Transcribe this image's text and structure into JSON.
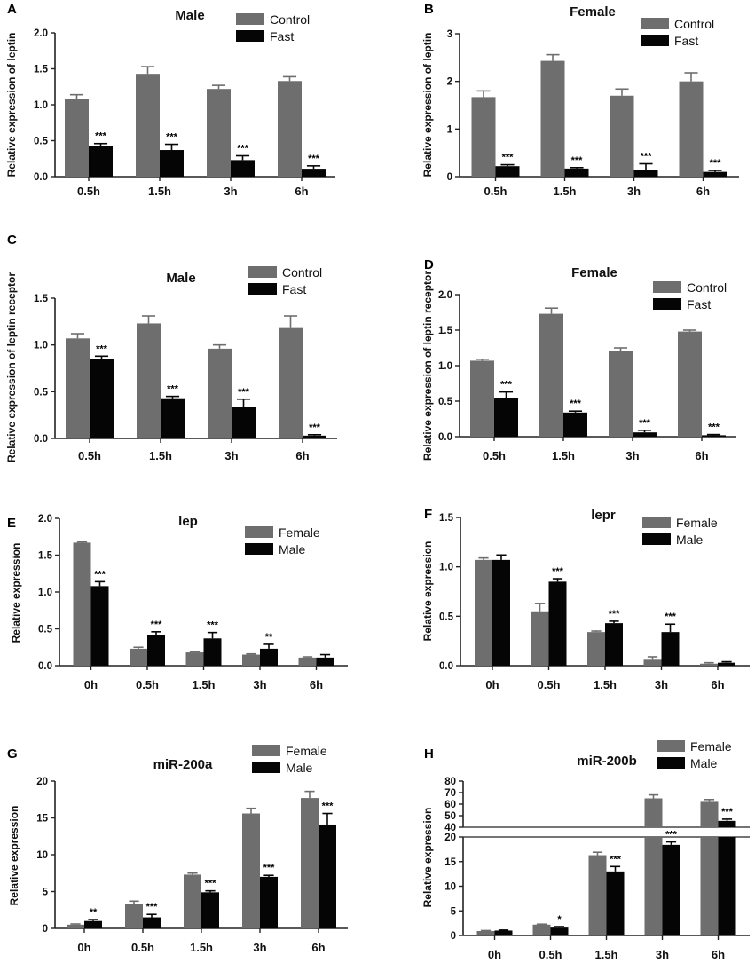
{
  "colors": {
    "primary": "#6e6e6e",
    "secondary": "#050505",
    "axis": "#222222"
  },
  "chart_data": [
    {
      "panel": "A",
      "type": "bar",
      "title": "Male",
      "ylabel": "Relative expression of leptin",
      "xlabel": "",
      "categories": [
        "0.5h",
        "1.5h",
        "3h",
        "6h"
      ],
      "ylim": [
        0,
        2.0
      ],
      "yticks": [
        {
          "v": 0,
          "t": "0.0"
        },
        {
          "v": 0.5,
          "t": "0.5"
        },
        {
          "v": 1.0,
          "t": "1.0"
        },
        {
          "v": 1.5,
          "t": "1.5"
        },
        {
          "v": 2.0,
          "t": "2.0"
        }
      ],
      "legend": "top-right",
      "series": [
        {
          "name": "Control",
          "values": [
            1.08,
            1.43,
            1.22,
            1.33
          ],
          "errors": [
            0.06,
            0.1,
            0.05,
            0.06
          ],
          "sig": [
            "",
            "",
            "",
            ""
          ]
        },
        {
          "name": "Fast",
          "values": [
            0.42,
            0.37,
            0.23,
            0.11
          ],
          "errors": [
            0.04,
            0.08,
            0.06,
            0.04
          ],
          "sig": [
            "***",
            "***",
            "***",
            "***"
          ]
        }
      ]
    },
    {
      "panel": "B",
      "type": "bar",
      "title": "Female",
      "ylabel": "Relative expression of leptin",
      "xlabel": "",
      "categories": [
        "0.5h",
        "1.5h",
        "3h",
        "6h"
      ],
      "ylim": [
        0,
        3
      ],
      "yticks": [
        {
          "v": 0,
          "t": "0"
        },
        {
          "v": 1,
          "t": "1"
        },
        {
          "v": 2,
          "t": "2"
        },
        {
          "v": 3,
          "t": "3"
        }
      ],
      "legend": "top-right",
      "series": [
        {
          "name": "Control",
          "values": [
            1.67,
            2.43,
            1.7,
            2.0
          ],
          "errors": [
            0.13,
            0.13,
            0.14,
            0.18
          ],
          "sig": [
            "",
            "",
            "",
            ""
          ]
        },
        {
          "name": "Fast",
          "values": [
            0.22,
            0.17,
            0.14,
            0.1
          ],
          "errors": [
            0.03,
            0.02,
            0.13,
            0.03
          ],
          "sig": [
            "***",
            "***",
            "***",
            "***"
          ]
        }
      ]
    },
    {
      "panel": "C",
      "type": "bar",
      "title": "Male",
      "ylabel": "Relative expression of leptin receptor",
      "xlabel": "",
      "categories": [
        "0.5h",
        "1.5h",
        "3h",
        "6h"
      ],
      "ylim": [
        0,
        1.5
      ],
      "yticks": [
        {
          "v": 0,
          "t": "0.0"
        },
        {
          "v": 0.5,
          "t": "0.5"
        },
        {
          "v": 1.0,
          "t": "1.0"
        },
        {
          "v": 1.5,
          "t": "1.5"
        }
      ],
      "legend": "top-right",
      "series": [
        {
          "name": "Control",
          "values": [
            1.07,
            1.23,
            0.96,
            1.19
          ],
          "errors": [
            0.05,
            0.08,
            0.04,
            0.12
          ],
          "sig": [
            "",
            "",
            "",
            ""
          ]
        },
        {
          "name": "Fast",
          "values": [
            0.85,
            0.43,
            0.34,
            0.03
          ],
          "errors": [
            0.03,
            0.02,
            0.08,
            0.01
          ],
          "sig": [
            "***",
            "***",
            "***",
            "***"
          ]
        }
      ]
    },
    {
      "panel": "D",
      "type": "bar",
      "title": "Female",
      "ylabel": "Relative expression of leptin receptor",
      "xlabel": "",
      "categories": [
        "0.5h",
        "1.5h",
        "3h",
        "6h"
      ],
      "ylim": [
        0,
        2.0
      ],
      "yticks": [
        {
          "v": 0,
          "t": "0.0"
        },
        {
          "v": 0.5,
          "t": "0.5"
        },
        {
          "v": 1.0,
          "t": "1.0"
        },
        {
          "v": 1.5,
          "t": "1.5"
        },
        {
          "v": 2.0,
          "t": "2.0"
        }
      ],
      "legend": "top-right",
      "series": [
        {
          "name": "Control",
          "values": [
            1.07,
            1.73,
            1.2,
            1.48
          ],
          "errors": [
            0.02,
            0.08,
            0.05,
            0.02
          ],
          "sig": [
            "",
            "",
            "",
            ""
          ]
        },
        {
          "name": "Fast",
          "values": [
            0.55,
            0.34,
            0.06,
            0.02
          ],
          "errors": [
            0.08,
            0.02,
            0.03,
            0.01
          ],
          "sig": [
            "***",
            "***",
            "***",
            "***"
          ]
        }
      ]
    },
    {
      "panel": "E",
      "type": "bar",
      "title": "lep",
      "ylabel": "Relative expression",
      "xlabel": "",
      "categories": [
        "0h",
        "0.5h",
        "1.5h",
        "3h",
        "6h"
      ],
      "ylim": [
        0,
        2.0
      ],
      "yticks": [
        {
          "v": 0,
          "t": "0.0"
        },
        {
          "v": 0.5,
          "t": "0.5"
        },
        {
          "v": 1.0,
          "t": "1.0"
        },
        {
          "v": 1.5,
          "t": "1.5"
        },
        {
          "v": 2.0,
          "t": "2.0"
        }
      ],
      "legend": "top-right",
      "series": [
        {
          "name": "Female",
          "values": [
            1.67,
            0.23,
            0.18,
            0.15,
            0.11
          ],
          "errors": [
            0.01,
            0.02,
            0.01,
            0.01,
            0.01
          ],
          "sig": [
            "",
            "",
            "",
            "",
            ""
          ]
        },
        {
          "name": "Male",
          "values": [
            1.08,
            0.42,
            0.37,
            0.23,
            0.11
          ],
          "errors": [
            0.06,
            0.04,
            0.08,
            0.06,
            0.04
          ],
          "sig": [
            "***",
            "***",
            "***",
            "**",
            ""
          ]
        }
      ]
    },
    {
      "panel": "F",
      "type": "bar",
      "title": "lepr",
      "ylabel": "Relative expression",
      "xlabel": "",
      "categories": [
        "0h",
        "0.5h",
        "1.5h",
        "3h",
        "6h"
      ],
      "ylim": [
        0,
        1.5
      ],
      "yticks": [
        {
          "v": 0,
          "t": "0.0"
        },
        {
          "v": 0.5,
          "t": "0.5"
        },
        {
          "v": 1.0,
          "t": "1.0"
        },
        {
          "v": 1.5,
          "t": "1.5"
        }
      ],
      "legend": "top-right",
      "series": [
        {
          "name": "Female",
          "values": [
            1.07,
            0.55,
            0.34,
            0.06,
            0.02
          ],
          "errors": [
            0.02,
            0.08,
            0.01,
            0.03,
            0.01
          ],
          "sig": [
            "",
            "",
            "",
            "",
            ""
          ]
        },
        {
          "name": "Male",
          "values": [
            1.07,
            0.85,
            0.43,
            0.34,
            0.03
          ],
          "errors": [
            0.05,
            0.03,
            0.02,
            0.08,
            0.01
          ],
          "sig": [
            "",
            "***",
            "***",
            "***",
            ""
          ]
        }
      ]
    },
    {
      "panel": "G",
      "type": "bar",
      "title": "miR-200a",
      "ylabel": "Relative expression",
      "xlabel": "",
      "categories": [
        "0h",
        "0.5h",
        "1.5h",
        "3h",
        "6h"
      ],
      "ylim": [
        0,
        20
      ],
      "yticks": [
        {
          "v": 0,
          "t": "0"
        },
        {
          "v": 5,
          "t": "5"
        },
        {
          "v": 10,
          "t": "10"
        },
        {
          "v": 15,
          "t": "15"
        },
        {
          "v": 20,
          "t": "20"
        }
      ],
      "legend": "top-right",
      "series": [
        {
          "name": "Female",
          "values": [
            0.5,
            3.3,
            7.3,
            15.6,
            17.7
          ],
          "errors": [
            0.1,
            0.4,
            0.2,
            0.7,
            0.9
          ],
          "sig": [
            "",
            "",
            "",
            "",
            ""
          ]
        },
        {
          "name": "Male",
          "values": [
            1.0,
            1.5,
            4.9,
            7.0,
            14.1
          ],
          "errors": [
            0.2,
            0.4,
            0.2,
            0.2,
            1.5
          ],
          "sig": [
            "**",
            "***",
            "***",
            "***",
            "***"
          ]
        }
      ]
    },
    {
      "panel": "H",
      "type": "bar",
      "title": "miR-200b",
      "ylabel": "Relative expression",
      "xlabel": "",
      "categories": [
        "0h",
        "0.5h",
        "1.5h",
        "3h",
        "6h"
      ],
      "ylim": [
        0,
        80
      ],
      "axis_break": [
        20,
        40
      ],
      "yticks": [
        {
          "v": 0,
          "t": "0"
        },
        {
          "v": 5,
          "t": "5"
        },
        {
          "v": 10,
          "t": "10"
        },
        {
          "v": 15,
          "t": "15"
        },
        {
          "v": 20,
          "t": "20"
        },
        {
          "v": 40,
          "t": "40"
        },
        {
          "v": 50,
          "t": "50"
        },
        {
          "v": 60,
          "t": "60"
        },
        {
          "v": 70,
          "t": "70"
        },
        {
          "v": 80,
          "t": "80"
        }
      ],
      "legend": "top-right",
      "series": [
        {
          "name": "Female",
          "values": [
            0.9,
            2.2,
            16.3,
            65,
            62
          ],
          "errors": [
            0.1,
            0.1,
            0.6,
            3,
            2
          ],
          "sig": [
            "",
            "",
            "",
            "",
            ""
          ]
        },
        {
          "name": "Male",
          "values": [
            1.0,
            1.6,
            13.0,
            18.4,
            45.5
          ],
          "errors": [
            0.1,
            0.2,
            1.0,
            0.6,
            1.5
          ],
          "sig": [
            "",
            "*",
            "***",
            "***",
            "***"
          ]
        }
      ]
    }
  ]
}
